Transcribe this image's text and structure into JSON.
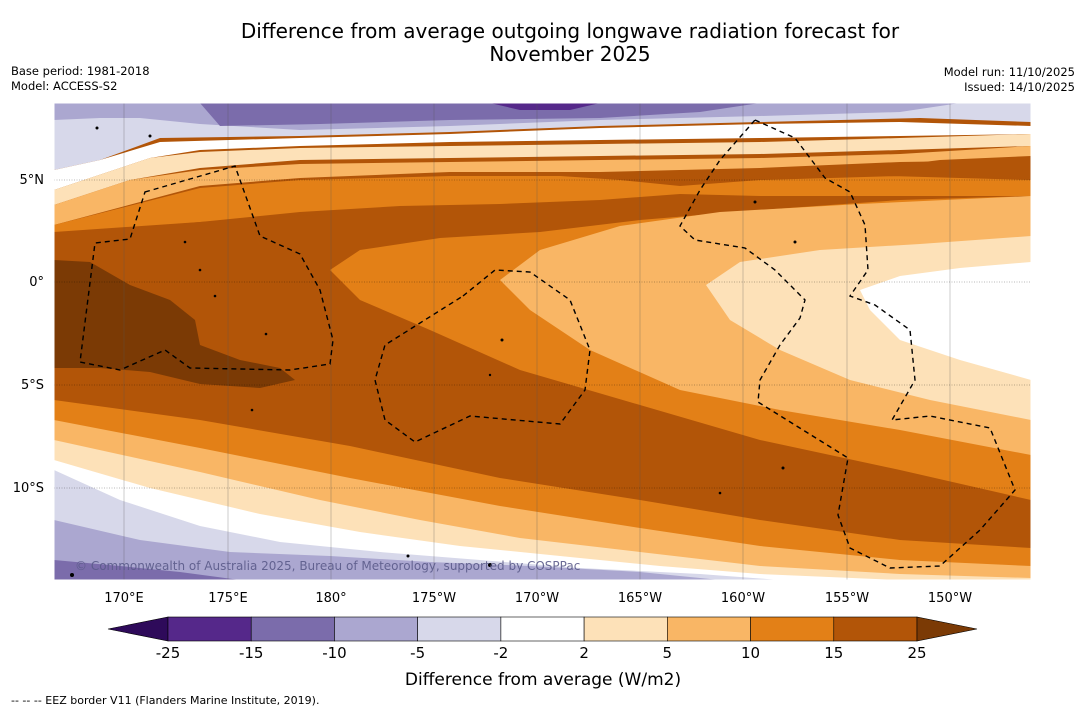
{
  "header": {
    "title_line1": "Difference from average outgoing longwave radiation forecast for",
    "title_line2": "November 2025",
    "base_period": "Base period: 1981-2018",
    "model": "Model: ACCESS-S2",
    "model_run": "Model run: 11/10/2025",
    "issued": "Issued: 14/10/2025"
  },
  "map": {
    "lat_labels": [
      "5°N",
      "0°",
      "5°S",
      "10°S"
    ],
    "lon_labels": [
      "170°E",
      "175°E",
      "180°",
      "175°W",
      "170°W",
      "165°W",
      "160°W",
      "155°W",
      "150°W"
    ],
    "credit": "© Commonwealth of Australia 2025, Bureau of Meteorology, supported by COSPPac"
  },
  "colorbar": {
    "ticks": [
      "-25",
      "-15",
      "-10",
      "-5",
      "-2",
      "2",
      "5",
      "10",
      "15",
      "25"
    ],
    "colors": [
      "#55288a",
      "#7b6cab",
      "#aba7d0",
      "#d7d8ea",
      "#ffffff",
      "#fde1b8",
      "#f9b665",
      "#e38017",
      "#b25508"
    ],
    "under_color": "#2e0a5a",
    "over_color": "#7b3a05",
    "label": "Difference from average (W/m2)"
  },
  "legend": {
    "eez_note": "-- -- -- EEZ border V11 (Flanders Marine Institute, 2019)."
  }
}
